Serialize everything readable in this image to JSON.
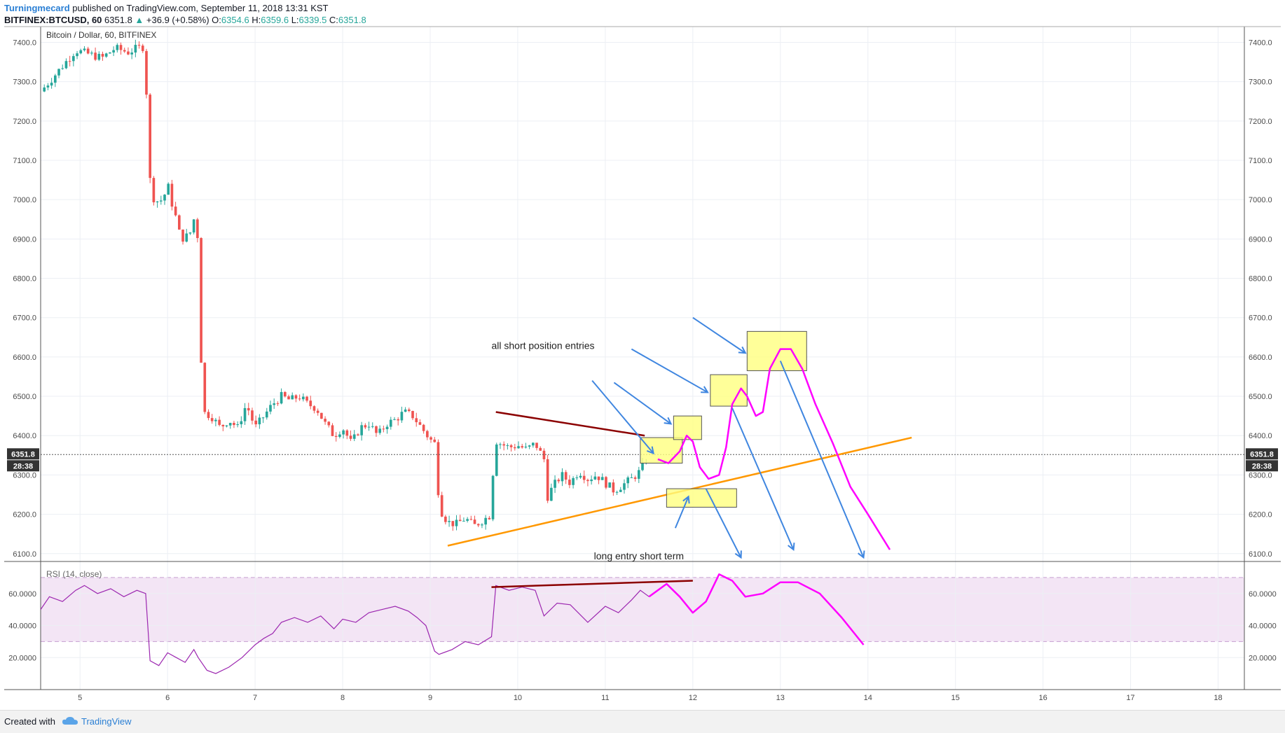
{
  "header": {
    "author": "Turningmecard",
    "published": "published on TradingView.com, September 11, 2018 13:31 KST",
    "symbol": "BITFINEX:BTCUSD, 60",
    "last": "6351.8",
    "change": "+36.9 (+0.58%)",
    "open_label": "O:",
    "open": "6354.6",
    "high_label": "H:",
    "high": "6359.6",
    "low_label": "L:",
    "low": "6339.5",
    "close_label": "C:",
    "close": "6351.8"
  },
  "footer": {
    "created": "Created with",
    "brand": "TradingView"
  },
  "colors": {
    "up": "#26a69a",
    "down": "#ef5350",
    "accent": "#2a7fd4",
    "rsi_band": "#f3e5f5",
    "rsi_line": "#9c27b0",
    "drawing_magenta": "#ff00ff",
    "drawing_arrow": "#3f86e0",
    "trendline_orange": "#ff9800",
    "trendline_red": "#8b0000",
    "box_yellow": "#ffff80"
  },
  "chart_data": [
    {
      "type": "candlestick",
      "title": "Bitcoin / Dollar, 60, BITFINEX",
      "xlabel": "",
      "ylabel": "",
      "x_ticks": [
        "5",
        "6",
        "7",
        "8",
        "9",
        "10",
        "11",
        "12",
        "13",
        "14",
        "15",
        "16",
        "17",
        "18"
      ],
      "x_range_days": [
        4.55,
        18.3
      ],
      "ylim": [
        6080,
        7440
      ],
      "y_ticks": [
        "7400.0",
        "7300.0",
        "7200.0",
        "7100.0",
        "7000.0",
        "6900.0",
        "6800.0",
        "6700.0",
        "6600.0",
        "6500.0",
        "6400.0",
        "6300.0",
        "6200.0",
        "6100.0"
      ],
      "last_price_label": "6351.8",
      "countdown_label": "28:38",
      "last_price": 6351.8,
      "grid": true,
      "close_path": [
        [
          4.55,
          7275
        ],
        [
          4.65,
          7300
        ],
        [
          4.8,
          7340
        ],
        [
          4.95,
          7380
        ],
        [
          5.1,
          7370
        ],
        [
          5.25,
          7360
        ],
        [
          5.4,
          7385
        ],
        [
          5.55,
          7375
        ],
        [
          5.65,
          7385
        ],
        [
          5.75,
          7390
        ],
        [
          5.77,
          7110
        ],
        [
          5.8,
          7050
        ],
        [
          5.85,
          6995
        ],
        [
          5.95,
          7000
        ],
        [
          6.0,
          7040
        ],
        [
          6.05,
          6990
        ],
        [
          6.1,
          6950
        ],
        [
          6.15,
          6900
        ],
        [
          6.25,
          6910
        ],
        [
          6.3,
          6950
        ],
        [
          6.35,
          6900
        ],
        [
          6.37,
          6700
        ],
        [
          6.4,
          6460
        ],
        [
          6.5,
          6450
        ],
        [
          6.6,
          6420
        ],
        [
          6.7,
          6440
        ],
        [
          6.8,
          6420
        ],
        [
          6.9,
          6480
        ],
        [
          7.0,
          6420
        ],
        [
          7.1,
          6450
        ],
        [
          7.2,
          6480
        ],
        [
          7.3,
          6500
        ],
        [
          7.4,
          6490
        ],
        [
          7.5,
          6500
        ],
        [
          7.6,
          6480
        ],
        [
          7.7,
          6470
        ],
        [
          7.8,
          6430
        ],
        [
          7.9,
          6400
        ],
        [
          8.0,
          6420
        ],
        [
          8.1,
          6380
        ],
        [
          8.2,
          6420
        ],
        [
          8.3,
          6430
        ],
        [
          8.4,
          6400
        ],
        [
          8.5,
          6430
        ],
        [
          8.6,
          6440
        ],
        [
          8.7,
          6460
        ],
        [
          8.8,
          6450
        ],
        [
          8.9,
          6420
        ],
        [
          9.0,
          6390
        ],
        [
          9.05,
          6380
        ],
        [
          9.08,
          6280
        ],
        [
          9.12,
          6210
        ],
        [
          9.2,
          6180
        ],
        [
          9.3,
          6175
        ],
        [
          9.4,
          6190
        ],
        [
          9.5,
          6170
        ],
        [
          9.6,
          6185
        ],
        [
          9.7,
          6200
        ],
        [
          9.73,
          6390
        ],
        [
          9.8,
          6380
        ],
        [
          9.9,
          6370
        ],
        [
          10.0,
          6375
        ],
        [
          10.1,
          6365
        ],
        [
          10.2,
          6380
        ],
        [
          10.3,
          6340
        ],
        [
          10.33,
          6240
        ],
        [
          10.4,
          6270
        ],
        [
          10.5,
          6300
        ],
        [
          10.6,
          6280
        ],
        [
          10.7,
          6310
        ],
        [
          10.8,
          6290
        ],
        [
          10.9,
          6300
        ],
        [
          11.0,
          6280
        ],
        [
          11.1,
          6260
        ],
        [
          11.2,
          6275
        ],
        [
          11.3,
          6290
        ],
        [
          11.4,
          6310
        ],
        [
          11.5,
          6352
        ]
      ]
    },
    {
      "type": "line",
      "title": "RSI (14, close)",
      "ylim": [
        0,
        80
      ],
      "y_ticks": [
        "60.0000",
        "40.0000",
        "20.0000"
      ],
      "bands": [
        30,
        70
      ],
      "grid": true,
      "x": [
        4.55,
        4.65,
        4.8,
        4.95,
        5.05,
        5.2,
        5.35,
        5.5,
        5.65,
        5.75,
        5.8,
        5.9,
        6.0,
        6.1,
        6.2,
        6.3,
        6.35,
        6.45,
        6.55,
        6.7,
        6.85,
        7.0,
        7.1,
        7.2,
        7.3,
        7.45,
        7.6,
        7.75,
        7.9,
        8.0,
        8.15,
        8.3,
        8.45,
        8.6,
        8.75,
        8.85,
        8.95,
        9.05,
        9.1,
        9.25,
        9.4,
        9.55,
        9.7,
        9.75,
        9.9,
        10.05,
        10.2,
        10.3,
        10.45,
        10.6,
        10.8,
        11.0,
        11.15,
        11.3,
        11.4,
        11.5
      ],
      "values": [
        50,
        58,
        55,
        62,
        65,
        60,
        63,
        58,
        62,
        60,
        18,
        15,
        23,
        20,
        17,
        25,
        20,
        12,
        10,
        14,
        20,
        28,
        32,
        35,
        42,
        45,
        42,
        46,
        38,
        44,
        42,
        48,
        50,
        52,
        49,
        45,
        40,
        24,
        22,
        25,
        30,
        28,
        33,
        65,
        62,
        64,
        62,
        46,
        54,
        53,
        42,
        52,
        48,
        56,
        62,
        58
      ]
    }
  ],
  "annotations": {
    "text_short": "all short position entries",
    "text_long": "long entry short term"
  }
}
